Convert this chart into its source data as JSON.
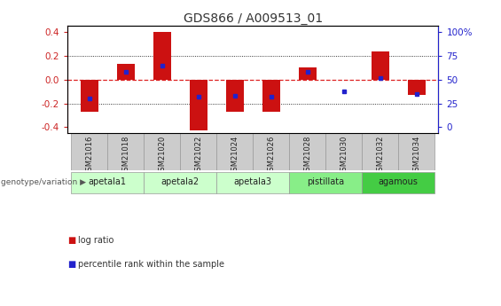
{
  "title": "GDS866 / A009513_01",
  "samples": [
    "GSM21016",
    "GSM21018",
    "GSM21020",
    "GSM21022",
    "GSM21024",
    "GSM21026",
    "GSM21028",
    "GSM21030",
    "GSM21032",
    "GSM21034"
  ],
  "log_ratios": [
    -0.27,
    0.13,
    0.4,
    -0.43,
    -0.27,
    -0.27,
    0.1,
    0.0,
    0.24,
    -0.13
  ],
  "percentile_ranks": [
    30,
    58,
    65,
    32,
    33,
    32,
    58,
    38,
    52,
    35
  ],
  "groups_def": [
    {
      "name": "apetala1",
      "indices": [
        0,
        1
      ],
      "color": "#ccffcc"
    },
    {
      "name": "apetala2",
      "indices": [
        2,
        3
      ],
      "color": "#ccffcc"
    },
    {
      "name": "apetala3",
      "indices": [
        4,
        5
      ],
      "color": "#ccffcc"
    },
    {
      "name": "pistillata",
      "indices": [
        6,
        7
      ],
      "color": "#88ee88"
    },
    {
      "name": "agamous",
      "indices": [
        8,
        9
      ],
      "color": "#44cc44"
    }
  ],
  "ylim": [
    -0.45,
    0.45
  ],
  "yticks_left": [
    -0.4,
    -0.2,
    0.0,
    0.2,
    0.4
  ],
  "yticks_right": [
    0,
    25,
    50,
    75,
    100
  ],
  "bar_color": "#cc1111",
  "dot_color": "#2222cc",
  "zero_line_color": "#dd2222",
  "bg_color": "#ffffff",
  "tick_label_color_left": "#cc2222",
  "tick_label_color_right": "#2222cc",
  "title_color": "#333333",
  "bar_width": 0.5,
  "gsm_bg": "#cccccc",
  "gsm_edge": "#999999"
}
